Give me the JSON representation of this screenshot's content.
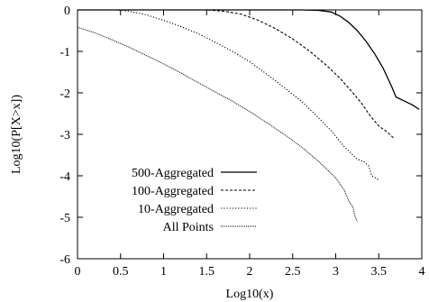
{
  "chart_data": {
    "type": "line",
    "title": "",
    "xlabel": "Log10(x)",
    "ylabel": "Log10(P[X>x])",
    "xlim": [
      0,
      4
    ],
    "ylim": [
      -6,
      0
    ],
    "xticks": [
      "0",
      "0.5",
      "1",
      "1.5",
      "2",
      "2.5",
      "3",
      "3.5",
      "4"
    ],
    "yticks": [
      "0",
      "-1",
      "-2",
      "-3",
      "-4",
      "-5",
      "-6"
    ],
    "grid": false,
    "legend_position": "lower-left",
    "series": [
      {
        "name": "500-Aggregated",
        "style": "solid",
        "points": [
          [
            0,
            0
          ],
          [
            1.0,
            0
          ],
          [
            2.0,
            0
          ],
          [
            2.6,
            0
          ],
          [
            2.8,
            -0.01
          ],
          [
            2.95,
            -0.05
          ],
          [
            3.05,
            -0.15
          ],
          [
            3.15,
            -0.3
          ],
          [
            3.25,
            -0.5
          ],
          [
            3.35,
            -0.75
          ],
          [
            3.45,
            -1.05
          ],
          [
            3.55,
            -1.4
          ],
          [
            3.65,
            -1.85
          ],
          [
            3.7,
            -2.1
          ],
          [
            3.8,
            -2.2
          ],
          [
            3.9,
            -2.3
          ],
          [
            3.97,
            -2.4
          ]
        ]
      },
      {
        "name": "100-Aggregated",
        "style": "dashed",
        "points": [
          [
            0,
            0
          ],
          [
            1.0,
            0
          ],
          [
            1.5,
            0
          ],
          [
            1.7,
            -0.03
          ],
          [
            1.9,
            -0.1
          ],
          [
            2.1,
            -0.25
          ],
          [
            2.3,
            -0.45
          ],
          [
            2.5,
            -0.7
          ],
          [
            2.7,
            -1.0
          ],
          [
            2.9,
            -1.35
          ],
          [
            3.05,
            -1.65
          ],
          [
            3.2,
            -2.0
          ],
          [
            3.3,
            -2.25
          ],
          [
            3.4,
            -2.55
          ],
          [
            3.5,
            -2.8
          ],
          [
            3.6,
            -2.95
          ],
          [
            3.68,
            -3.1
          ]
        ]
      },
      {
        "name": "10-Aggregated",
        "style": "dotted",
        "points": [
          [
            0.45,
            0
          ],
          [
            0.6,
            -0.03
          ],
          [
            0.8,
            -0.12
          ],
          [
            1.0,
            -0.25
          ],
          [
            1.2,
            -0.4
          ],
          [
            1.4,
            -0.57
          ],
          [
            1.6,
            -0.78
          ],
          [
            1.8,
            -1.0
          ],
          [
            2.0,
            -1.25
          ],
          [
            2.2,
            -1.55
          ],
          [
            2.4,
            -1.87
          ],
          [
            2.6,
            -2.2
          ],
          [
            2.8,
            -2.6
          ],
          [
            2.95,
            -2.92
          ],
          [
            3.1,
            -3.3
          ],
          [
            3.25,
            -3.6
          ],
          [
            3.32,
            -3.65
          ],
          [
            3.38,
            -3.75
          ],
          [
            3.42,
            -4.0
          ],
          [
            3.5,
            -4.1
          ]
        ]
      },
      {
        "name": "All Points",
        "style": "dense-dotted",
        "points": [
          [
            0,
            -0.42
          ],
          [
            0.2,
            -0.55
          ],
          [
            0.4,
            -0.72
          ],
          [
            0.6,
            -0.9
          ],
          [
            0.8,
            -1.1
          ],
          [
            1.0,
            -1.3
          ],
          [
            1.2,
            -1.52
          ],
          [
            1.4,
            -1.75
          ],
          [
            1.6,
            -1.98
          ],
          [
            1.8,
            -2.2
          ],
          [
            2.0,
            -2.45
          ],
          [
            2.2,
            -2.72
          ],
          [
            2.4,
            -3.0
          ],
          [
            2.6,
            -3.3
          ],
          [
            2.8,
            -3.65
          ],
          [
            2.9,
            -3.85
          ],
          [
            3.0,
            -4.05
          ],
          [
            3.05,
            -4.2
          ],
          [
            3.1,
            -4.35
          ],
          [
            3.15,
            -4.6
          ],
          [
            3.2,
            -4.75
          ],
          [
            3.22,
            -4.95
          ],
          [
            3.25,
            -5.1
          ]
        ]
      }
    ]
  }
}
